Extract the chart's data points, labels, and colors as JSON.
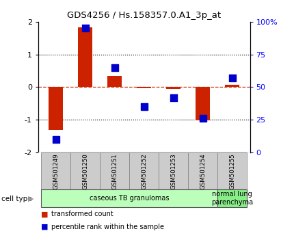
{
  "title": "GDS4256 / Hs.158357.0.A1_3p_at",
  "samples": [
    "GSM501249",
    "GSM501250",
    "GSM501251",
    "GSM501252",
    "GSM501253",
    "GSM501254",
    "GSM501255"
  ],
  "transformed_count": [
    -1.3,
    1.82,
    0.35,
    -0.03,
    -0.05,
    -1.02,
    0.08
  ],
  "percentile_rank": [
    10,
    95,
    65,
    35,
    42,
    26,
    57
  ],
  "ylim_left": [
    -2,
    2
  ],
  "ylim_right": [
    0,
    100
  ],
  "yticks_left": [
    -2,
    -1,
    0,
    1,
    2
  ],
  "yticks_right": [
    0,
    25,
    50,
    75,
    100
  ],
  "ytick_labels_right": [
    "0",
    "25",
    "50",
    "75",
    "100%"
  ],
  "bar_color": "#cc2200",
  "dot_color": "#0000cc",
  "hline_color": "#cc2200",
  "dotted_color": "#000000",
  "groups": [
    {
      "label": "caseous TB granulomas",
      "indices": [
        0,
        1,
        2,
        3,
        4,
        5
      ],
      "color": "#bbffbb"
    },
    {
      "label": "normal lung\nparenchyma",
      "indices": [
        6
      ],
      "color": "#88ee88"
    }
  ],
  "cell_type_label": "cell type",
  "legend_items": [
    {
      "color": "#cc2200",
      "label": "transformed count"
    },
    {
      "color": "#0000cc",
      "label": "percentile rank within the sample"
    }
  ],
  "bar_width": 0.5,
  "dot_size": 55,
  "sample_box_color": "#cccccc",
  "sample_box_edge": "#888888"
}
